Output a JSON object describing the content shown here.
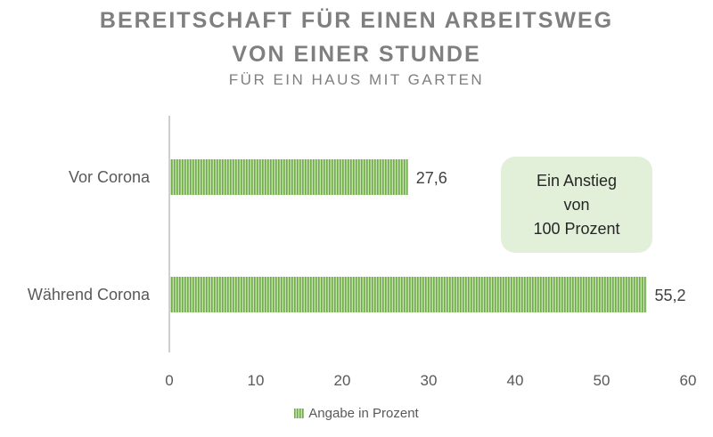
{
  "chart_data": {
    "type": "bar",
    "orientation": "horizontal",
    "title_line1": "BEREITSCHAFT FÜR EINEN ARBEITSWEG",
    "title_line2": "VON EINER STUNDE",
    "subtitle": "FÜR EIN HAUS MIT GARTEN",
    "categories": [
      "Vor Corona",
      "Während Corona"
    ],
    "series": [
      {
        "name": "Angabe in Prozent",
        "values": [
          27.6,
          55.2
        ]
      }
    ],
    "data_labels": [
      "27,6",
      "55,2"
    ],
    "xlim": [
      0,
      60
    ],
    "x_ticks": [
      "0",
      "10",
      "20",
      "30",
      "40",
      "50",
      "60"
    ],
    "grid": false,
    "legend_position": "bottom",
    "bar_color": "#70ad47",
    "bar_pattern": "vertical stripes",
    "annotation": {
      "lines": [
        "Ein Anstieg",
        "von",
        "100 Prozent"
      ],
      "background": "#e3f0d9"
    }
  }
}
